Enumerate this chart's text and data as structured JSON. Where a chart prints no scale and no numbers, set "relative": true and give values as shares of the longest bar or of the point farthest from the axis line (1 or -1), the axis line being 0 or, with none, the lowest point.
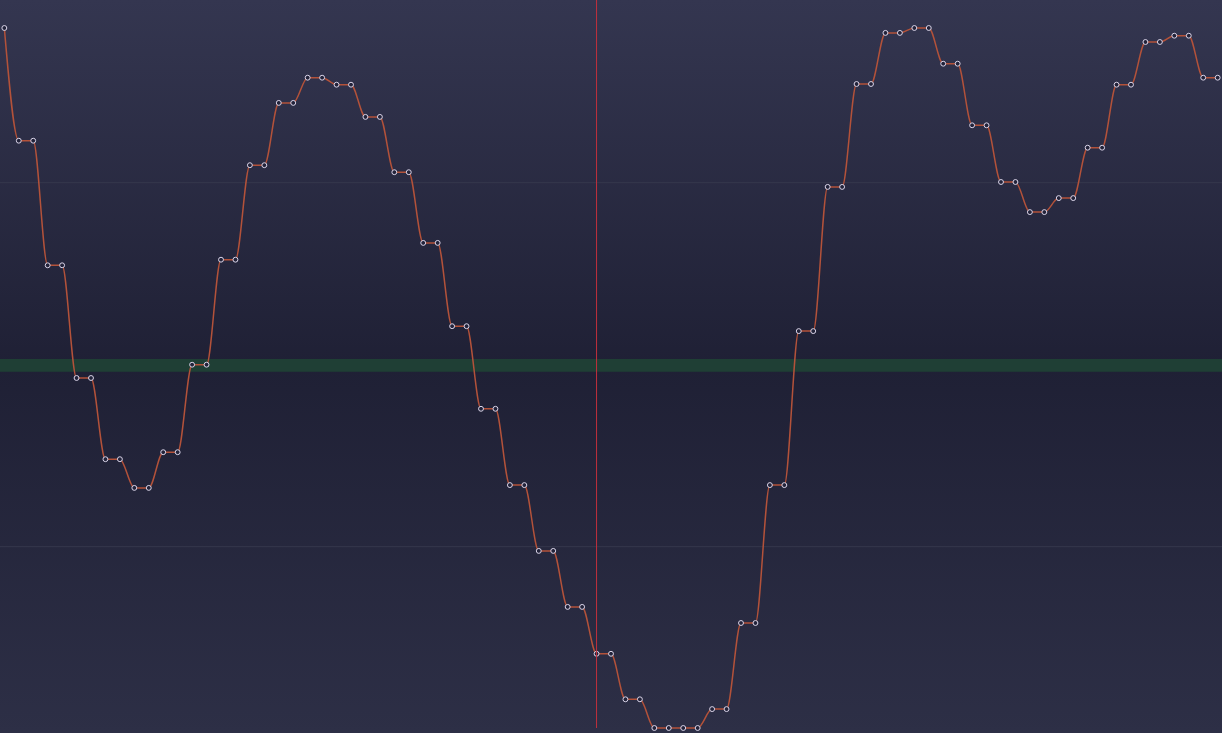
{
  "chart_data": {
    "type": "line",
    "relative": true,
    "categories": [
      null,
      null,
      null,
      null,
      null,
      null,
      null,
      null,
      null,
      null,
      null,
      null,
      null,
      null,
      null,
      null,
      null,
      null,
      null,
      null,
      null,
      null,
      null,
      null,
      null,
      null,
      null,
      null,
      null,
      null,
      null,
      null,
      null,
      null,
      null,
      null,
      null,
      null,
      null,
      null,
      null,
      null,
      null,
      null,
      null,
      null,
      null,
      null,
      null,
      null,
      null,
      null,
      null,
      null,
      null,
      null,
      null,
      null,
      null,
      null,
      null,
      null,
      null,
      null,
      null,
      null,
      null,
      null,
      null,
      null,
      null,
      null,
      null,
      null,
      null,
      null,
      null,
      null,
      null,
      null,
      null,
      null,
      null,
      null,
      null
    ],
    "series": [
      {
        "color": "#b3523a",
        "values": [
          1.0,
          0.839,
          0.839,
          0.661,
          0.661,
          0.5,
          0.5,
          0.384,
          0.384,
          0.343,
          0.343,
          0.394,
          0.394,
          0.519,
          0.519,
          0.669,
          0.669,
          0.804,
          0.804,
          0.893,
          0.893,
          0.929,
          0.929,
          0.919,
          0.919,
          0.873,
          0.873,
          0.794,
          0.794,
          0.693,
          0.693,
          0.574,
          0.574,
          0.456,
          0.456,
          0.347,
          0.347,
          0.253,
          0.253,
          0.173,
          0.173,
          0.106,
          0.106,
          0.041,
          0.041,
          0.0,
          0.0,
          0.0,
          0.0,
          0.027,
          0.027,
          0.15,
          0.15,
          0.347,
          0.347,
          0.567,
          0.567,
          0.773,
          0.773,
          0.92,
          0.92,
          0.993,
          0.993,
          1.0,
          1.0,
          0.949,
          0.949,
          0.861,
          0.861,
          0.78,
          0.78,
          0.737,
          0.737,
          0.757,
          0.757,
          0.829,
          0.829,
          0.919,
          0.919,
          0.98,
          0.98,
          0.989,
          0.989,
          0.929,
          0.929
        ]
      }
    ],
    "marker": "circle",
    "ref_lines": [
      {
        "axis": "y",
        "value": 0.779,
        "color": "#35384d"
      },
      {
        "axis": "y",
        "value": 0.259,
        "color": "#35384d"
      }
    ],
    "bands": [
      {
        "axis": "y",
        "from": 0.509,
        "to": 0.527,
        "color": "#1f3f35"
      }
    ]
  }
}
